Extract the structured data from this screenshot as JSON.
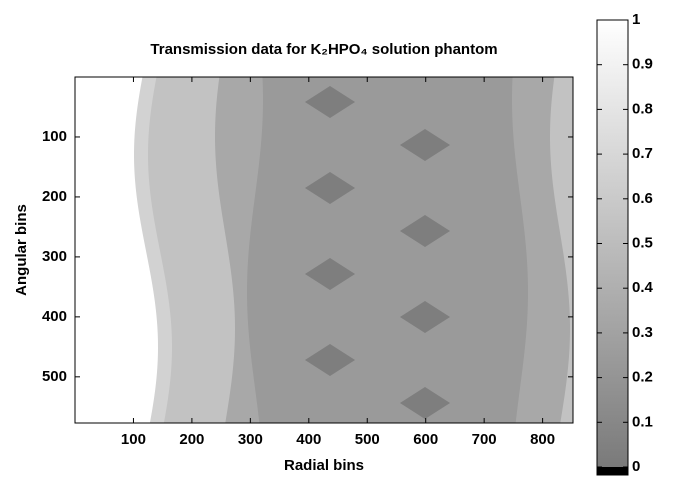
{
  "chart_data": {
    "type": "image",
    "title": "Transmission data for K₂HPO₄ solution phantom",
    "x_label": "Radial bins",
    "y_label": "Angular bins",
    "xlim": [
      0,
      852
    ],
    "xticks": [
      100,
      200,
      300,
      400,
      500,
      600,
      700,
      800
    ],
    "ylim": [
      0,
      577
    ],
    "yticks": [
      100,
      200,
      300,
      400,
      500
    ],
    "y_reversed": true,
    "colormap": "gray",
    "colorbar": {
      "clim": [
        0,
        1
      ],
      "ticks": [
        0,
        0.1,
        0.2,
        0.3,
        0.4,
        0.5,
        0.6,
        0.7,
        0.8,
        0.9,
        1
      ]
    }
  }
}
